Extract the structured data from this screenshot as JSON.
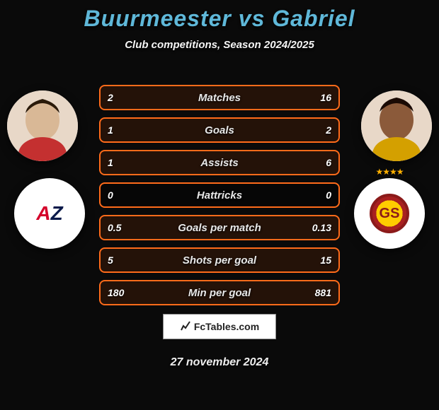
{
  "title": "Buurmeester vs Gabriel",
  "subtitle": "Club competitions, Season 2024/2025",
  "date": "27 november 2024",
  "logo_text": "FcTables.com",
  "colors": {
    "accent": "#ff6b1a",
    "title": "#5fb8d9",
    "bg": "#0a0a0a"
  },
  "rows": [
    {
      "label": "Matches",
      "l": "2",
      "r": "16",
      "lp": 12,
      "rp": 88
    },
    {
      "label": "Goals",
      "l": "1",
      "r": "2",
      "lp": 33,
      "rp": 67
    },
    {
      "label": "Assists",
      "l": "1",
      "r": "6",
      "lp": 14,
      "rp": 86
    },
    {
      "label": "Hattricks",
      "l": "0",
      "r": "0",
      "lp": 0,
      "rp": 0
    },
    {
      "label": "Goals per match",
      "l": "0.5",
      "r": "0.13",
      "lp": 79,
      "rp": 21
    },
    {
      "label": "Shots per goal",
      "l": "5",
      "r": "15",
      "lp": 25,
      "rp": 75
    },
    {
      "label": "Min per goal",
      "l": "180",
      "r": "881",
      "lp": 17,
      "rp": 83
    }
  ],
  "teams": {
    "left_name": "AZ",
    "right_name": "Galatasaray"
  }
}
